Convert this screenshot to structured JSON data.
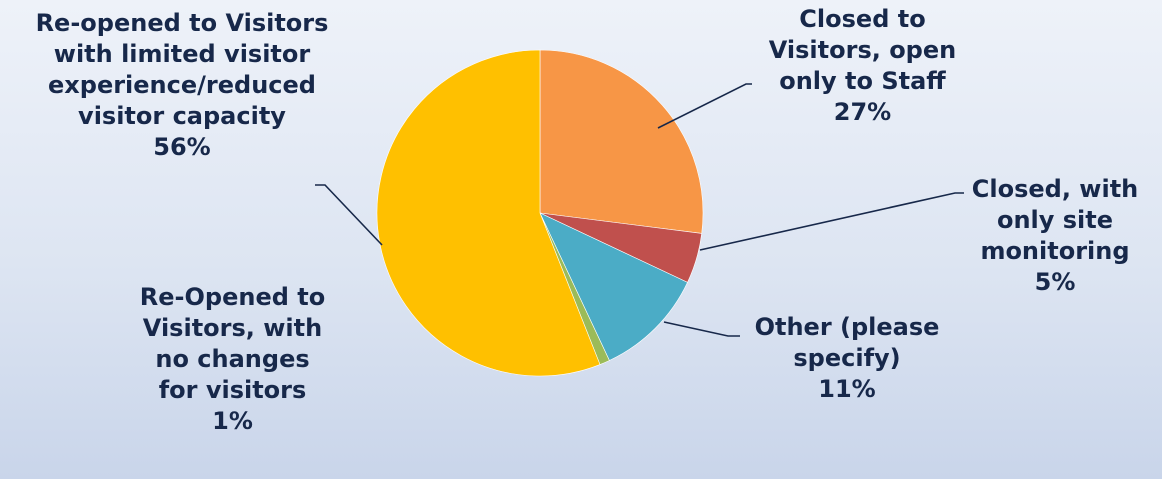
{
  "chart_data": {
    "type": "pie",
    "slices": [
      {
        "label": "Closed to Visitors, open only to Staff",
        "value": 27,
        "pct_label": "27%",
        "color": "#f79646"
      },
      {
        "label": "Closed, with only site monitoring",
        "value": 5,
        "pct_label": "5%",
        "color": "#c0504d"
      },
      {
        "label": "Other (please specify)",
        "value": 11,
        "pct_label": "11%",
        "color": "#4bacc6"
      },
      {
        "label": "Re-Opened to Visitors, with no changes for visitors",
        "value": 1,
        "pct_label": "1%",
        "color": "#9bbb59"
      },
      {
        "label": "Re-opened to Visitors with limited visitor experience/reduced visitor capacity",
        "value": 56,
        "pct_label": "56%",
        "color": "#ffc000"
      }
    ],
    "label_lines": {
      "closed_staff": [
        "Closed to",
        "Visitors, open",
        "only to Staff"
      ],
      "closed_monitoring": [
        "Closed, with",
        "only site",
        "monitoring"
      ],
      "other": [
        "Other (please",
        "specify)"
      ],
      "reopened_no_change": [
        "Re-Opened to",
        "Visitors, with",
        "no changes",
        "for visitors"
      ],
      "reopened_limited": [
        "Re-opened to Visitors",
        "with limited visitor",
        "experience/reduced",
        "visitor capacity"
      ]
    }
  }
}
